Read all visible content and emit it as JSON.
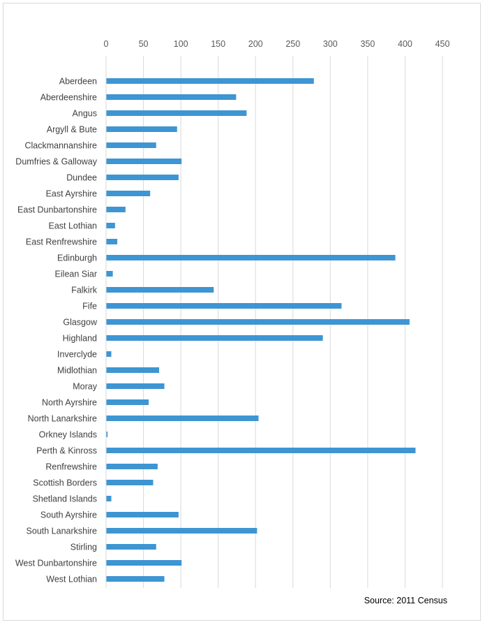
{
  "chart_data": {
    "type": "bar",
    "orientation": "horizontal",
    "title": "",
    "xlabel": "",
    "ylabel": "",
    "xlim": [
      0,
      450
    ],
    "x_ticks": [
      0,
      50,
      100,
      150,
      200,
      250,
      300,
      350,
      400,
      450
    ],
    "x_axis_position": "top",
    "grid": "vertical",
    "legend": "none",
    "bar_color": "#3e95d3",
    "categories": [
      "Aberdeen",
      "Aberdeenshire",
      "Angus",
      "Argyll & Bute",
      "Clackmannanshire",
      "Dumfries & Galloway",
      "Dundee",
      "East Ayrshire",
      "East Dunbartonshire",
      "East Lothian",
      "East Renfrewshire",
      "Edinburgh",
      "Eilean Siar",
      "Falkirk",
      "Fife",
      "Glasgow",
      "Highland",
      "Inverclyde",
      "Midlothian",
      "Moray",
      "North Ayrshire",
      "North Lanarkshire",
      "Orkney Islands",
      "Perth & Kinross",
      "Renfrewshire",
      "Scottish Borders",
      "Shetland Islands",
      "South Ayrshire",
      "South Lanarkshire",
      "Stirling",
      "West Dunbartonshire",
      "West Lothian"
    ],
    "values": [
      278,
      174,
      188,
      95,
      67,
      101,
      97,
      59,
      26,
      12,
      15,
      387,
      9,
      144,
      315,
      406,
      290,
      7,
      71,
      78,
      57,
      204,
      2,
      414,
      69,
      63,
      7,
      97,
      202,
      67,
      101,
      78
    ],
    "source_note": "Source: 2011 Census"
  }
}
